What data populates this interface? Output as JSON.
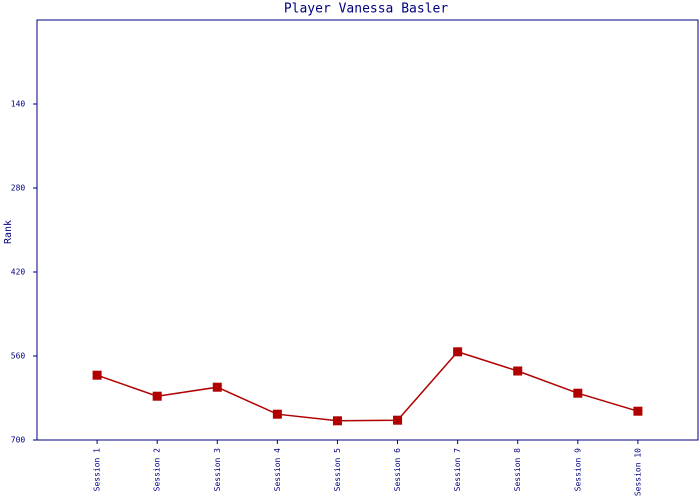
{
  "chart_data": {
    "type": "line",
    "title": "Player Vanessa Basler",
    "y_label": "Rank",
    "categories": [
      "Session 1",
      "Session 2",
      "Session 3",
      "Session 4",
      "Session 5",
      "Session 6",
      "Session 7",
      "Session 8",
      "Session 9",
      "Session 10"
    ],
    "series": [
      {
        "name": "Rank",
        "color": "#b00000",
        "values": [
          592,
          627,
          612,
          657,
          668,
          667,
          553,
          585,
          622,
          652
        ]
      }
    ],
    "ylim": [
      0,
      700
    ],
    "yticks": [
      140,
      280,
      420,
      560,
      700
    ],
    "y_inverted": true,
    "grid": false
  }
}
